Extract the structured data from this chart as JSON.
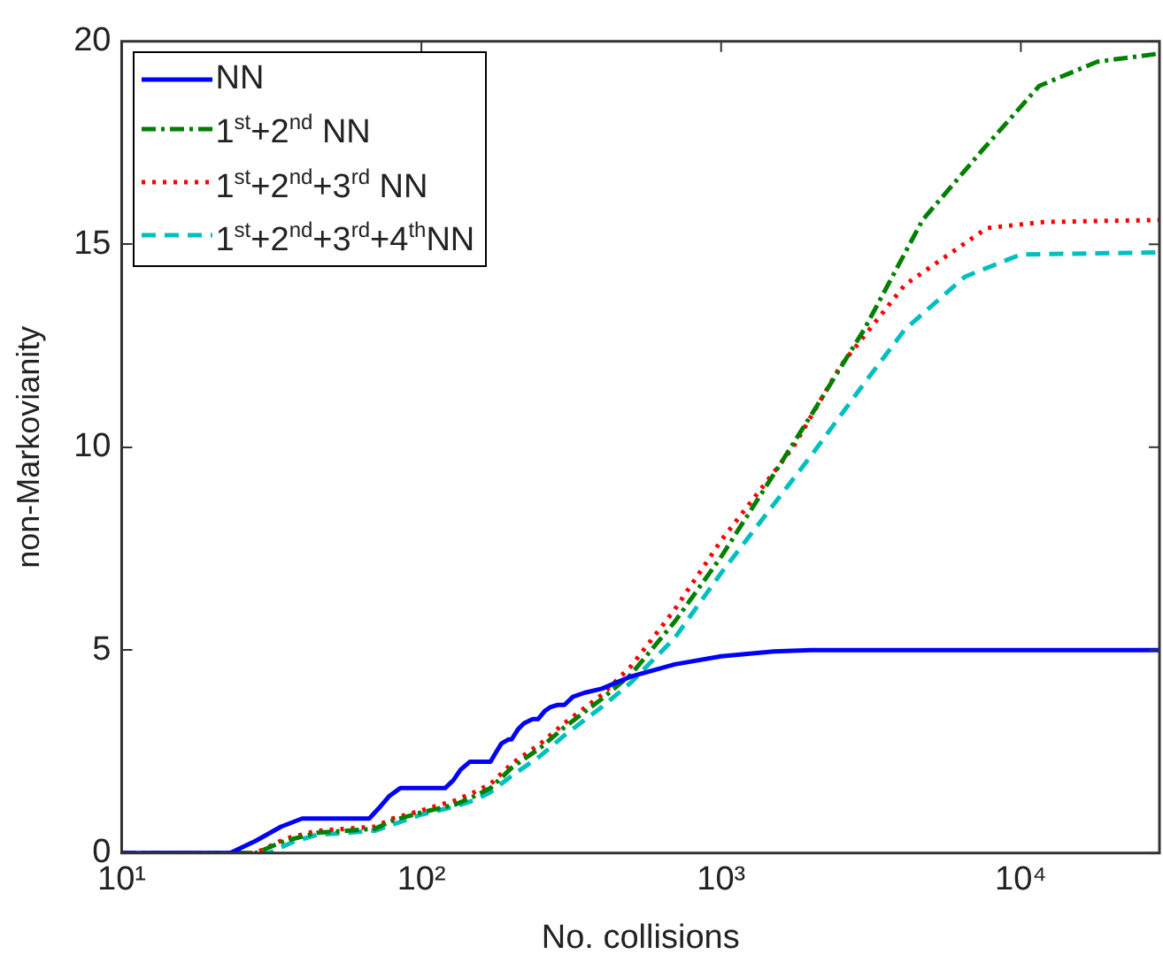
{
  "chart_data": {
    "type": "line",
    "xlabel": "No. collisions",
    "ylabel": "non-Markovianity",
    "log": "x",
    "xlim": [
      10,
      29000
    ],
    "xticks": [
      {
        "value": 10,
        "label": "10¹"
      },
      {
        "value": 100,
        "label": "10²"
      },
      {
        "value": 1000,
        "label": "10³"
      },
      {
        "value": 10000,
        "label": "10⁴"
      }
    ],
    "ylim": [
      0,
      20
    ],
    "yticks": [
      0,
      5,
      10,
      15,
      20
    ],
    "grid": false,
    "legend": "top left",
    "marker": "none",
    "series": [
      {
        "name": "NN",
        "color": "#0000ff",
        "line_style": "solid",
        "x": [
          10,
          23,
          28,
          34,
          40,
          67,
          72,
          78,
          85,
          120,
          128,
          135,
          145,
          170,
          178,
          185,
          195,
          200,
          210,
          220,
          235,
          245,
          258,
          270,
          285,
          300,
          320,
          350,
          400,
          500,
          700,
          1000,
          1500,
          2000,
          5000,
          29000
        ],
        "values": [
          0,
          0,
          0.3,
          0.65,
          0.85,
          0.85,
          1.1,
          1.4,
          1.6,
          1.6,
          1.8,
          2.05,
          2.25,
          2.25,
          2.5,
          2.7,
          2.8,
          2.8,
          3.05,
          3.2,
          3.3,
          3.3,
          3.5,
          3.6,
          3.65,
          3.65,
          3.85,
          3.95,
          4.05,
          4.35,
          4.65,
          4.85,
          4.97,
          5,
          5,
          5
        ]
      },
      {
        "name": "1$^{st}$+2$^{nd}$ NN",
        "color": "#008000",
        "line_style": "dashdot",
        "x": [
          10,
          28,
          35,
          45,
          70,
          80,
          100,
          130,
          150,
          170,
          200,
          250,
          300,
          400,
          500,
          700,
          1000,
          1580,
          2000,
          3000,
          4700,
          7400,
          11500,
          18000,
          29000
        ],
        "values": [
          0,
          0,
          0.3,
          0.5,
          0.6,
          0.8,
          1.0,
          1.2,
          1.4,
          1.6,
          2.1,
          2.6,
          3.1,
          3.8,
          4.4,
          5.7,
          7.3,
          9.6,
          10.8,
          12.9,
          15.6,
          17.3,
          18.9,
          19.5,
          19.7
        ]
      },
      {
        "name": "1$^{st}$+2$^{nd}$+3$^{rd}$ NN",
        "color": "#ff0000",
        "line_style": "dotted",
        "x": [
          10,
          28,
          35,
          45,
          70,
          80,
          100,
          130,
          150,
          170,
          200,
          250,
          300,
          400,
          500,
          700,
          1000,
          1740,
          2500,
          4100,
          7700,
          12000,
          29000
        ],
        "values": [
          0,
          0,
          0.35,
          0.55,
          0.65,
          0.85,
          1.05,
          1.3,
          1.5,
          1.7,
          2.2,
          2.7,
          3.2,
          3.9,
          4.6,
          6.0,
          7.7,
          10.0,
          12.0,
          14.0,
          15.4,
          15.55,
          15.6
        ]
      },
      {
        "name": "1$^{st}$+2$^{nd}$+3$^{rd}$+4$^{th}$NN",
        "color": "#00bfbf",
        "line_style": "dashed",
        "x": [
          10,
          31,
          38,
          45,
          70,
          80,
          100,
          130,
          150,
          170,
          200,
          250,
          300,
          400,
          500,
          700,
          1000,
          2000,
          2950,
          4100,
          6500,
          10000,
          29000
        ],
        "values": [
          0,
          0,
          0.3,
          0.45,
          0.55,
          0.7,
          0.95,
          1.15,
          1.3,
          1.5,
          1.9,
          2.4,
          2.9,
          3.6,
          4.2,
          5.3,
          6.9,
          9.8,
          11.5,
          12.9,
          14.2,
          14.75,
          14.8
        ]
      }
    ]
  }
}
